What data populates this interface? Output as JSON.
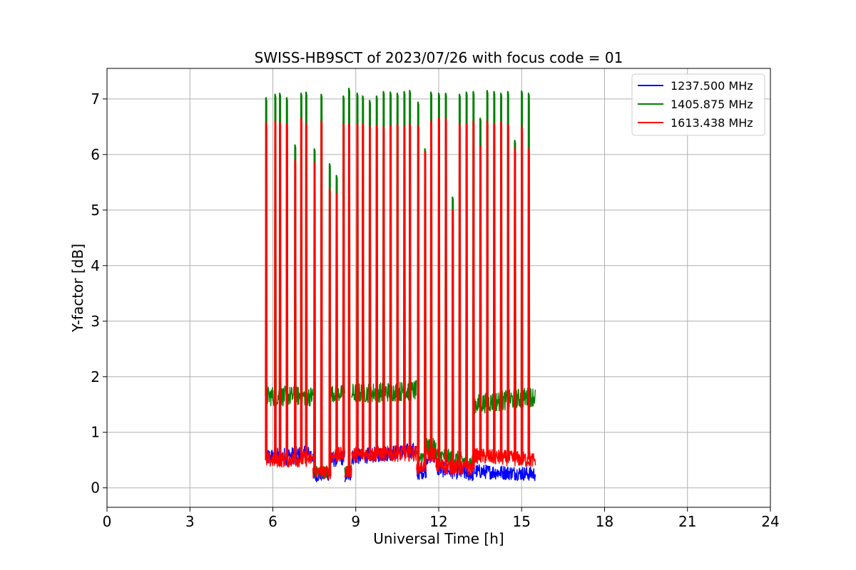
{
  "chart_data": {
    "type": "line",
    "title": "SWISS-HB9SCT of 2023/07/26 with focus code = 01",
    "xlabel": "Universal Time [h]",
    "ylabel": "Y-factor [dB]",
    "xlim": [
      0,
      24
    ],
    "ylim": [
      -0.35,
      7.55
    ],
    "xticks": [
      0,
      3,
      6,
      9,
      12,
      15,
      18,
      21,
      24
    ],
    "yticks": [
      0,
      1,
      2,
      3,
      4,
      5,
      6,
      7
    ],
    "grid": true,
    "legend_position": "top-right",
    "series": [
      {
        "name": "1237.500 MHz",
        "color": "#0000ff",
        "baseline_segments": [
          {
            "x": [
              5.75,
              7.45
            ],
            "y": [
              0.55,
              0.6
            ],
            "noise": 0.16
          },
          {
            "x": [
              7.45,
              8.1
            ],
            "y": [
              0.22,
              0.25
            ],
            "noise": 0.12
          },
          {
            "x": [
              8.1,
              8.6
            ],
            "y": [
              0.5,
              0.55
            ],
            "noise": 0.14
          },
          {
            "x": [
              8.6,
              8.85
            ],
            "y": [
              0.2,
              0.25
            ],
            "noise": 0.12
          },
          {
            "x": [
              8.85,
              11.2
            ],
            "y": [
              0.55,
              0.68
            ],
            "noise": 0.14
          },
          {
            "x": [
              11.2,
              11.55
            ],
            "y": [
              0.25,
              0.3
            ],
            "noise": 0.12
          },
          {
            "x": [
              11.55,
              11.9
            ],
            "y": [
              0.55,
              0.6
            ],
            "noise": 0.14
          },
          {
            "x": [
              11.9,
              13.25
            ],
            "y": [
              0.35,
              0.25
            ],
            "noise": 0.14
          },
          {
            "x": [
              13.25,
              15.5
            ],
            "y": [
              0.3,
              0.25
            ],
            "noise": 0.13
          }
        ],
        "peaks": []
      },
      {
        "name": "1405.875 MHz",
        "color": "#008000",
        "baseline_segments": [
          {
            "x": [
              5.75,
              7.45
            ],
            "y": [
              1.65,
              1.65
            ],
            "noise": 0.18
          },
          {
            "x": [
              7.45,
              8.1
            ],
            "y": [
              0.28,
              0.28
            ],
            "noise": 0.12
          },
          {
            "x": [
              8.1,
              8.6
            ],
            "y": [
              1.7,
              1.7
            ],
            "noise": 0.15
          },
          {
            "x": [
              8.6,
              8.85
            ],
            "y": [
              0.3,
              0.3
            ],
            "noise": 0.12
          },
          {
            "x": [
              8.85,
              11.2
            ],
            "y": [
              1.7,
              1.75
            ],
            "noise": 0.18
          },
          {
            "x": [
              11.2,
              11.55
            ],
            "y": [
              0.55,
              0.6
            ],
            "noise": 0.12
          },
          {
            "x": [
              11.55,
              11.9
            ],
            "y": [
              0.75,
              0.75
            ],
            "noise": 0.14
          },
          {
            "x": [
              11.9,
              13.25
            ],
            "y": [
              0.6,
              0.45
            ],
            "noise": 0.15
          },
          {
            "x": [
              13.25,
              15.5
            ],
            "y": [
              1.5,
              1.65
            ],
            "noise": 0.18
          }
        ],
        "peaks": [
          {
            "x": 5.75,
            "y": 7.02
          },
          {
            "x": 6.08,
            "y": 7.08
          },
          {
            "x": 6.25,
            "y": 7.1
          },
          {
            "x": 6.5,
            "y": 7.02
          },
          {
            "x": 6.8,
            "y": 6.17
          },
          {
            "x": 7.02,
            "y": 7.1
          },
          {
            "x": 7.2,
            "y": 7.12
          },
          {
            "x": 7.5,
            "y": 6.1
          },
          {
            "x": 7.75,
            "y": 7.08
          },
          {
            "x": 8.05,
            "y": 5.83
          },
          {
            "x": 8.3,
            "y": 5.62
          },
          {
            "x": 8.55,
            "y": 7.05
          },
          {
            "x": 8.75,
            "y": 7.19
          },
          {
            "x": 9.05,
            "y": 7.1
          },
          {
            "x": 9.25,
            "y": 7.05
          },
          {
            "x": 9.5,
            "y": 6.97
          },
          {
            "x": 9.75,
            "y": 7.05
          },
          {
            "x": 10.0,
            "y": 7.13
          },
          {
            "x": 10.25,
            "y": 7.12
          },
          {
            "x": 10.5,
            "y": 7.1
          },
          {
            "x": 10.75,
            "y": 7.13
          },
          {
            "x": 10.95,
            "y": 7.15
          },
          {
            "x": 11.25,
            "y": 6.94
          },
          {
            "x": 11.5,
            "y": 6.1
          },
          {
            "x": 11.72,
            "y": 7.12
          },
          {
            "x": 12.0,
            "y": 7.1
          },
          {
            "x": 12.25,
            "y": 7.1
          },
          {
            "x": 12.5,
            "y": 5.23
          },
          {
            "x": 12.75,
            "y": 7.08
          },
          {
            "x": 13.0,
            "y": 7.12
          },
          {
            "x": 13.25,
            "y": 7.13
          },
          {
            "x": 13.5,
            "y": 6.65
          },
          {
            "x": 13.75,
            "y": 7.15
          },
          {
            "x": 14.0,
            "y": 7.13
          },
          {
            "x": 14.25,
            "y": 7.1
          },
          {
            "x": 14.5,
            "y": 7.13
          },
          {
            "x": 14.75,
            "y": 6.25
          },
          {
            "x": 15.0,
            "y": 7.14
          },
          {
            "x": 15.25,
            "y": 7.1
          }
        ]
      },
      {
        "name": "1613.438 MHz",
        "color": "#ff0000",
        "baseline_segments": [
          {
            "x": [
              5.75,
              7.45
            ],
            "y": [
              0.5,
              0.52
            ],
            "noise": 0.14
          },
          {
            "x": [
              7.45,
              8.1
            ],
            "y": [
              0.28,
              0.28
            ],
            "noise": 0.12
          },
          {
            "x": [
              8.1,
              8.6
            ],
            "y": [
              0.58,
              0.6
            ],
            "noise": 0.14
          },
          {
            "x": [
              8.6,
              8.85
            ],
            "y": [
              0.3,
              0.3
            ],
            "noise": 0.12
          },
          {
            "x": [
              8.85,
              11.2
            ],
            "y": [
              0.6,
              0.62
            ],
            "noise": 0.14
          },
          {
            "x": [
              11.2,
              11.55
            ],
            "y": [
              0.35,
              0.4
            ],
            "noise": 0.12
          },
          {
            "x": [
              11.55,
              11.9
            ],
            "y": [
              0.6,
              0.6
            ],
            "noise": 0.14
          },
          {
            "x": [
              11.9,
              13.25
            ],
            "y": [
              0.4,
              0.35
            ],
            "noise": 0.14
          },
          {
            "x": [
              13.25,
              15.5
            ],
            "y": [
              0.58,
              0.5
            ],
            "noise": 0.14
          }
        ],
        "peaks": [
          {
            "x": 5.75,
            "y": 6.57
          },
          {
            "x": 6.08,
            "y": 6.6
          },
          {
            "x": 6.25,
            "y": 6.58
          },
          {
            "x": 6.5,
            "y": 6.55
          },
          {
            "x": 6.8,
            "y": 5.9
          },
          {
            "x": 7.02,
            "y": 6.65
          },
          {
            "x": 7.2,
            "y": 6.55
          },
          {
            "x": 7.5,
            "y": 5.85
          },
          {
            "x": 7.75,
            "y": 6.6
          },
          {
            "x": 8.05,
            "y": 5.38
          },
          {
            "x": 8.3,
            "y": 5.3
          },
          {
            "x": 8.55,
            "y": 6.55
          },
          {
            "x": 8.75,
            "y": 6.55
          },
          {
            "x": 9.05,
            "y": 6.55
          },
          {
            "x": 9.25,
            "y": 6.55
          },
          {
            "x": 9.5,
            "y": 6.52
          },
          {
            "x": 9.75,
            "y": 6.52
          },
          {
            "x": 10.0,
            "y": 6.5
          },
          {
            "x": 10.25,
            "y": 6.52
          },
          {
            "x": 10.5,
            "y": 6.55
          },
          {
            "x": 10.75,
            "y": 6.5
          },
          {
            "x": 10.95,
            "y": 6.55
          },
          {
            "x": 11.25,
            "y": 6.52
          },
          {
            "x": 11.5,
            "y": 6.05
          },
          {
            "x": 11.72,
            "y": 6.6
          },
          {
            "x": 12.0,
            "y": 6.65
          },
          {
            "x": 12.25,
            "y": 6.65
          },
          {
            "x": 12.5,
            "y": 5.0
          },
          {
            "x": 12.75,
            "y": 6.55
          },
          {
            "x": 13.0,
            "y": 6.55
          },
          {
            "x": 13.25,
            "y": 6.6
          },
          {
            "x": 13.5,
            "y": 6.15
          },
          {
            "x": 13.75,
            "y": 6.6
          },
          {
            "x": 14.0,
            "y": 6.55
          },
          {
            "x": 14.25,
            "y": 6.58
          },
          {
            "x": 14.5,
            "y": 6.55
          },
          {
            "x": 14.75,
            "y": 6.1
          },
          {
            "x": 15.0,
            "y": 6.5
          },
          {
            "x": 15.25,
            "y": 6.1
          }
        ]
      }
    ]
  }
}
